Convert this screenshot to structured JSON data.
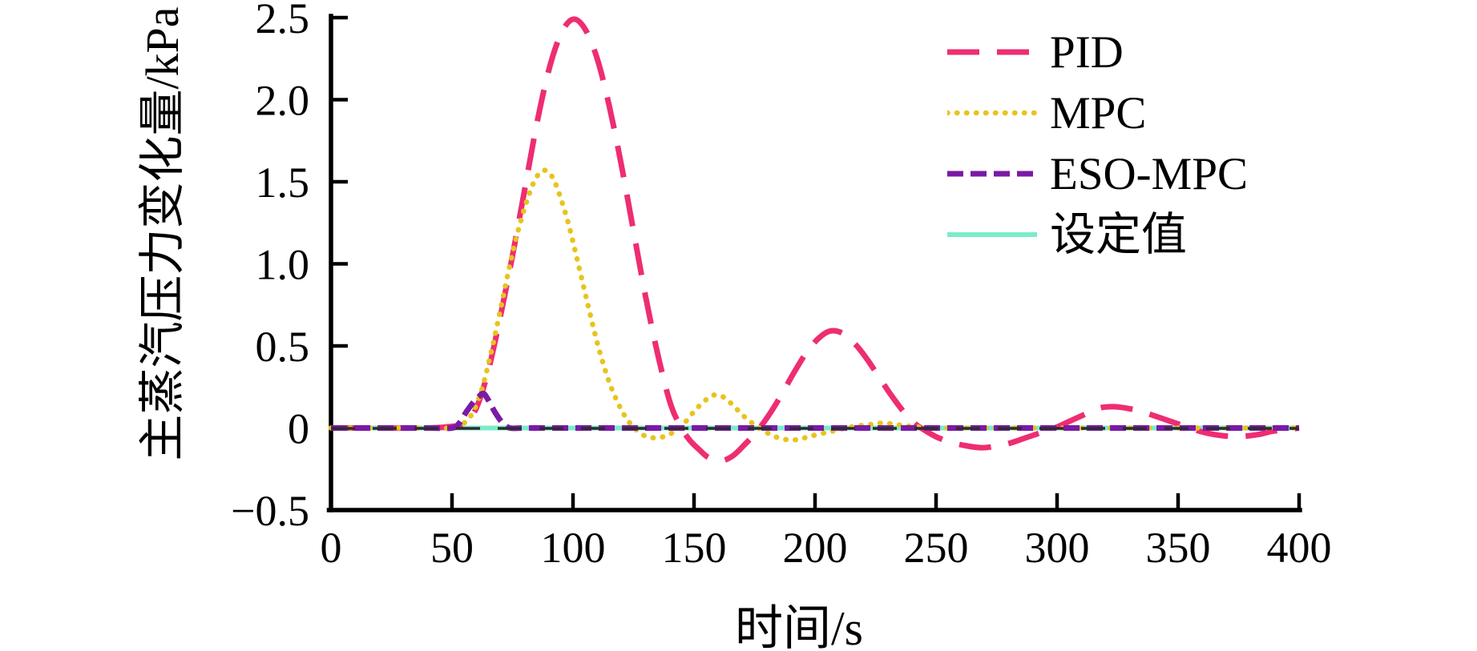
{
  "figure": {
    "background": "#ffffff",
    "text_color": "#000000",
    "axis_color": "#000000"
  },
  "chart_data": {
    "type": "line",
    "title": "",
    "xlabel": "时间/s",
    "ylabel": "主蒸汽压力变化量/kPa",
    "xlim": [
      0,
      400
    ],
    "ylim": [
      -0.5,
      2.5
    ],
    "grid": false,
    "legend_position": "upper right inside",
    "xticks": [
      0,
      50,
      100,
      150,
      200,
      250,
      300,
      350,
      400
    ],
    "xtick_labels": [
      "0",
      "50",
      "100",
      "150",
      "200",
      "250",
      "300",
      "350",
      "400"
    ],
    "yticks": [
      2.5,
      2.0,
      1.5,
      1.0,
      0.5,
      0,
      -0.5
    ],
    "ytick_labels": [
      "2.5",
      "2.0",
      "1.5",
      "1.0",
      "0.5",
      "0",
      "−0.5"
    ],
    "zero_reference_line": {
      "value": 0,
      "style": "dashed",
      "color": "#2d2d2d",
      "width": 3.5,
      "dash": [
        30,
        22
      ]
    },
    "series": [
      {
        "name": "PID",
        "color": "#ee2d72",
        "style": "dashed",
        "width": 7,
        "dash": [
          40,
          22
        ],
        "linecap": "butt",
        "x": [
          0,
          20,
          40,
          50,
          55,
          60,
          65,
          70,
          75,
          80,
          85,
          90,
          95,
          100,
          105,
          110,
          115,
          120,
          125,
          130,
          135,
          140,
          144,
          148,
          152,
          156,
          161,
          166,
          171,
          176,
          181,
          186,
          191,
          196,
          201,
          206,
          211,
          216,
          221,
          226,
          231,
          236,
          241,
          246,
          251,
          257,
          263,
          269,
          275,
          281,
          287,
          293,
          299,
          305,
          311,
          317,
          323,
          329,
          335,
          341,
          347,
          353,
          359,
          365,
          371,
          377,
          383,
          389,
          395,
          400
        ],
        "y": [
          0,
          0,
          0,
          0.01,
          0.03,
          0.12,
          0.35,
          0.68,
          1.05,
          1.45,
          1.85,
          2.18,
          2.4,
          2.49,
          2.43,
          2.25,
          1.96,
          1.6,
          1.2,
          0.8,
          0.45,
          0.16,
          0.02,
          -0.07,
          -0.13,
          -0.18,
          -0.2,
          -0.17,
          -0.1,
          -0.02,
          0.08,
          0.2,
          0.33,
          0.45,
          0.54,
          0.59,
          0.58,
          0.52,
          0.43,
          0.32,
          0.21,
          0.11,
          0.03,
          -0.02,
          -0.06,
          -0.09,
          -0.11,
          -0.12,
          -0.11,
          -0.09,
          -0.06,
          -0.03,
          0.0,
          0.04,
          0.08,
          0.12,
          0.13,
          0.12,
          0.1,
          0.07,
          0.04,
          0.01,
          -0.02,
          -0.04,
          -0.05,
          -0.05,
          -0.04,
          -0.02,
          -0.01,
          0.0
        ]
      },
      {
        "name": "MPC",
        "color": "#e7c41e",
        "style": "dotted",
        "width": 6.5,
        "dash": [
          0.5,
          11.5
        ],
        "linecap": "round",
        "x": [
          0,
          20,
          40,
          50,
          54,
          58,
          62,
          66,
          70,
          74,
          78,
          82,
          85,
          88,
          91,
          94,
          98,
          102,
          106,
          110,
          114,
          118,
          122,
          126,
          130,
          134,
          138,
          142,
          146,
          150,
          154,
          158,
          162,
          166,
          170,
          174,
          178,
          183,
          188,
          193,
          198,
          204,
          210,
          216,
          222,
          228,
          234,
          240,
          248,
          256,
          264,
          280,
          300,
          330,
          365,
          400
        ],
        "y": [
          0,
          0,
          0,
          0,
          0.02,
          0.08,
          0.22,
          0.45,
          0.72,
          1.0,
          1.24,
          1.43,
          1.53,
          1.57,
          1.54,
          1.44,
          1.25,
          1.01,
          0.76,
          0.52,
          0.32,
          0.17,
          0.06,
          -0.01,
          -0.05,
          -0.06,
          -0.05,
          -0.02,
          0.03,
          0.1,
          0.16,
          0.2,
          0.19,
          0.14,
          0.08,
          0.03,
          -0.01,
          -0.05,
          -0.07,
          -0.07,
          -0.05,
          -0.03,
          -0.01,
          0.01,
          0.02,
          0.03,
          0.02,
          0.01,
          0.0,
          0.0,
          0.0,
          0.0,
          0.0,
          0.0,
          0.0,
          0.0
        ]
      },
      {
        "name": "ESO-MPC",
        "color": "#7a1aa6",
        "style": "dashed",
        "width": 7,
        "dash": [
          20,
          9
        ],
        "linecap": "butt",
        "x": [
          0,
          20,
          40,
          50,
          53,
          56,
          59,
          61,
          63,
          65,
          68,
          71,
          74,
          80,
          100,
          150,
          200,
          250,
          300,
          350,
          400
        ],
        "y": [
          0,
          0,
          0,
          0,
          0.03,
          0.1,
          0.16,
          0.19,
          0.21,
          0.17,
          0.09,
          0.03,
          0,
          0,
          0,
          0,
          0,
          0,
          0,
          0,
          0
        ]
      },
      {
        "name": "设定值",
        "color": "#7beccb",
        "style": "solid",
        "width": 6,
        "dash": null,
        "linecap": "butt",
        "x": [
          0,
          400
        ],
        "y": [
          0,
          0
        ]
      }
    ]
  }
}
